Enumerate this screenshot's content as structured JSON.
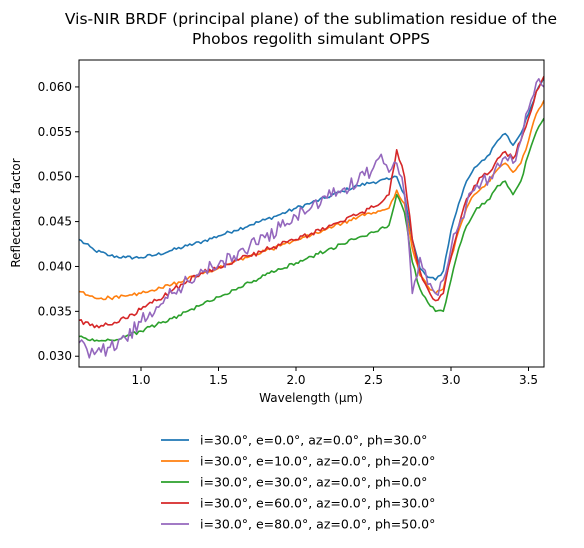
{
  "chart_data": {
    "type": "line",
    "title": "Vis-NIR BRDF (principal plane) of the sublimation residue of the Phobos regolith simulant OPPS",
    "title_lines": [
      "Vis-NIR BRDF (principal plane) of the sublimation residue of the",
      "Phobos regolith simulant OPPS"
    ],
    "xlabel": "Wavelength (μm)",
    "ylabel": "Reflectance factor",
    "xlim": [
      0.6,
      3.6
    ],
    "ylim": [
      0.0288,
      0.063
    ],
    "x_ticks": [
      1.0,
      1.5,
      2.0,
      2.5,
      3.0,
      3.5
    ],
    "x_tick_labels": [
      "1.0",
      "1.5",
      "2.0",
      "2.5",
      "3.0",
      "3.5"
    ],
    "y_ticks": [
      0.03,
      0.035,
      0.04,
      0.045,
      0.05,
      0.055,
      0.06
    ],
    "y_tick_labels": [
      "0.030",
      "0.035",
      "0.040",
      "0.045",
      "0.050",
      "0.055",
      "0.060"
    ],
    "grid": false,
    "legend_position": "below",
    "series": [
      {
        "name": "i=30.0°, e=0.0°, az=0.0°, ph=30.0°",
        "color": "#1f77b4",
        "noise": 0.0002,
        "points": [
          [
            0.6,
            0.043
          ],
          [
            0.7,
            0.0418
          ],
          [
            0.8,
            0.0412
          ],
          [
            0.9,
            0.041
          ],
          [
            1.0,
            0.041
          ],
          [
            1.1,
            0.0413
          ],
          [
            1.2,
            0.0418
          ],
          [
            1.3,
            0.0423
          ],
          [
            1.4,
            0.0428
          ],
          [
            1.5,
            0.0434
          ],
          [
            1.6,
            0.044
          ],
          [
            1.7,
            0.0446
          ],
          [
            1.8,
            0.0452
          ],
          [
            1.9,
            0.0458
          ],
          [
            2.0,
            0.0465
          ],
          [
            2.1,
            0.0471
          ],
          [
            2.2,
            0.0477
          ],
          [
            2.3,
            0.0484
          ],
          [
            2.4,
            0.049
          ],
          [
            2.5,
            0.0494
          ],
          [
            2.6,
            0.0497
          ],
          [
            2.65,
            0.05
          ],
          [
            2.7,
            0.048
          ],
          [
            2.75,
            0.043
          ],
          [
            2.8,
            0.0398
          ],
          [
            2.85,
            0.0388
          ],
          [
            2.9,
            0.0385
          ],
          [
            2.95,
            0.0395
          ],
          [
            3.0,
            0.044
          ],
          [
            3.05,
            0.047
          ],
          [
            3.1,
            0.0495
          ],
          [
            3.15,
            0.051
          ],
          [
            3.2,
            0.0518
          ],
          [
            3.25,
            0.0525
          ],
          [
            3.3,
            0.054
          ],
          [
            3.35,
            0.0548
          ],
          [
            3.4,
            0.0535
          ],
          [
            3.45,
            0.0548
          ],
          [
            3.5,
            0.057
          ],
          [
            3.55,
            0.0595
          ],
          [
            3.6,
            0.061
          ]
        ]
      },
      {
        "name": "i=30.0°, e=10.0°, az=0.0°, ph=20.0°",
        "color": "#ff7f0e",
        "noise": 0.0002,
        "points": [
          [
            0.6,
            0.0372
          ],
          [
            0.7,
            0.0365
          ],
          [
            0.8,
            0.0365
          ],
          [
            0.9,
            0.0367
          ],
          [
            1.0,
            0.037
          ],
          [
            1.1,
            0.0374
          ],
          [
            1.2,
            0.038
          ],
          [
            1.3,
            0.0386
          ],
          [
            1.4,
            0.0392
          ],
          [
            1.5,
            0.0398
          ],
          [
            1.6,
            0.0405
          ],
          [
            1.7,
            0.0411
          ],
          [
            1.8,
            0.0417
          ],
          [
            1.9,
            0.0423
          ],
          [
            2.0,
            0.0429
          ],
          [
            2.1,
            0.0435
          ],
          [
            2.2,
            0.0442
          ],
          [
            2.3,
            0.0448
          ],
          [
            2.4,
            0.0455
          ],
          [
            2.5,
            0.046
          ],
          [
            2.6,
            0.0465
          ],
          [
            2.65,
            0.0485
          ],
          [
            2.7,
            0.047
          ],
          [
            2.75,
            0.042
          ],
          [
            2.8,
            0.039
          ],
          [
            2.85,
            0.0378
          ],
          [
            2.9,
            0.037
          ],
          [
            2.95,
            0.0375
          ],
          [
            3.0,
            0.041
          ],
          [
            3.05,
            0.044
          ],
          [
            3.1,
            0.0465
          ],
          [
            3.15,
            0.048
          ],
          [
            3.2,
            0.0488
          ],
          [
            3.25,
            0.0495
          ],
          [
            3.3,
            0.0508
          ],
          [
            3.35,
            0.0515
          ],
          [
            3.4,
            0.0505
          ],
          [
            3.45,
            0.0515
          ],
          [
            3.5,
            0.054
          ],
          [
            3.55,
            0.057
          ],
          [
            3.6,
            0.0585
          ]
        ]
      },
      {
        "name": "i=30.0°, e=30.0°, az=0.0°, ph=0.0°",
        "color": "#2ca02c",
        "noise": 0.0002,
        "points": [
          [
            0.6,
            0.0322
          ],
          [
            0.7,
            0.0317
          ],
          [
            0.8,
            0.0318
          ],
          [
            0.9,
            0.0322
          ],
          [
            1.0,
            0.0328
          ],
          [
            1.1,
            0.0335
          ],
          [
            1.2,
            0.0342
          ],
          [
            1.3,
            0.035
          ],
          [
            1.4,
            0.0358
          ],
          [
            1.5,
            0.0366
          ],
          [
            1.6,
            0.0374
          ],
          [
            1.7,
            0.0382
          ],
          [
            1.8,
            0.039
          ],
          [
            1.9,
            0.0397
          ],
          [
            2.0,
            0.0404
          ],
          [
            2.1,
            0.0411
          ],
          [
            2.2,
            0.0418
          ],
          [
            2.3,
            0.0425
          ],
          [
            2.4,
            0.0432
          ],
          [
            2.5,
            0.0438
          ],
          [
            2.6,
            0.0446
          ],
          [
            2.65,
            0.048
          ],
          [
            2.7,
            0.046
          ],
          [
            2.75,
            0.0405
          ],
          [
            2.8,
            0.0375
          ],
          [
            2.85,
            0.036
          ],
          [
            2.9,
            0.035
          ],
          [
            2.95,
            0.035
          ],
          [
            3.0,
            0.0385
          ],
          [
            3.05,
            0.042
          ],
          [
            3.1,
            0.0445
          ],
          [
            3.15,
            0.046
          ],
          [
            3.2,
            0.047
          ],
          [
            3.25,
            0.0475
          ],
          [
            3.3,
            0.049
          ],
          [
            3.35,
            0.0495
          ],
          [
            3.4,
            0.048
          ],
          [
            3.45,
            0.0495
          ],
          [
            3.5,
            0.0525
          ],
          [
            3.55,
            0.055
          ],
          [
            3.6,
            0.0565
          ]
        ]
      },
      {
        "name": "i=30.0°, e=60.0°, az=0.0°, ph=30.0°",
        "color": "#d62728",
        "noise": 0.0003,
        "points": [
          [
            0.6,
            0.034
          ],
          [
            0.7,
            0.0332
          ],
          [
            0.8,
            0.0335
          ],
          [
            0.9,
            0.0342
          ],
          [
            1.0,
            0.0352
          ],
          [
            1.1,
            0.0362
          ],
          [
            1.2,
            0.0373
          ],
          [
            1.3,
            0.0384
          ],
          [
            1.4,
            0.0393
          ],
          [
            1.5,
            0.04
          ],
          [
            1.6,
            0.0406
          ],
          [
            1.7,
            0.0412
          ],
          [
            1.8,
            0.0418
          ],
          [
            1.9,
            0.0424
          ],
          [
            2.0,
            0.043
          ],
          [
            2.1,
            0.0437
          ],
          [
            2.2,
            0.0443
          ],
          [
            2.3,
            0.045
          ],
          [
            2.4,
            0.0458
          ],
          [
            2.5,
            0.0466
          ],
          [
            2.6,
            0.048
          ],
          [
            2.65,
            0.053
          ],
          [
            2.7,
            0.05
          ],
          [
            2.75,
            0.043
          ],
          [
            2.8,
            0.0395
          ],
          [
            2.85,
            0.0375
          ],
          [
            2.9,
            0.0362
          ],
          [
            2.95,
            0.037
          ],
          [
            3.0,
            0.041
          ],
          [
            3.05,
            0.0445
          ],
          [
            3.1,
            0.0475
          ],
          [
            3.15,
            0.049
          ],
          [
            3.2,
            0.05
          ],
          [
            3.25,
            0.0505
          ],
          [
            3.3,
            0.052
          ],
          [
            3.35,
            0.0528
          ],
          [
            3.4,
            0.052
          ],
          [
            3.45,
            0.054
          ],
          [
            3.5,
            0.0565
          ],
          [
            3.55,
            0.0595
          ],
          [
            3.6,
            0.0612
          ]
        ]
      },
      {
        "name": "i=30.0°, e=80.0°, az=0.0°, ph=50.0°",
        "color": "#9467bd",
        "noise": 0.0008,
        "points": [
          [
            0.6,
            0.0315
          ],
          [
            0.65,
            0.0308
          ],
          [
            0.7,
            0.0302
          ],
          [
            0.8,
            0.031
          ],
          [
            0.9,
            0.032
          ],
          [
            1.0,
            0.0338
          ],
          [
            1.1,
            0.0355
          ],
          [
            1.2,
            0.037
          ],
          [
            1.3,
            0.0384
          ],
          [
            1.4,
            0.0394
          ],
          [
            1.5,
            0.0402
          ],
          [
            1.6,
            0.0412
          ],
          [
            1.7,
            0.0422
          ],
          [
            1.8,
            0.0432
          ],
          [
            1.9,
            0.0444
          ],
          [
            2.0,
            0.0456
          ],
          [
            2.1,
            0.0466
          ],
          [
            2.2,
            0.0476
          ],
          [
            2.3,
            0.0486
          ],
          [
            2.4,
            0.0495
          ],
          [
            2.5,
            0.051
          ],
          [
            2.55,
            0.0525
          ],
          [
            2.6,
            0.0505
          ],
          [
            2.65,
            0.0515
          ],
          [
            2.7,
            0.048
          ],
          [
            2.75,
            0.037
          ],
          [
            2.8,
            0.041
          ],
          [
            2.85,
            0.038
          ],
          [
            2.9,
            0.037
          ],
          [
            2.95,
            0.0385
          ],
          [
            3.0,
            0.042
          ],
          [
            3.05,
            0.0445
          ],
          [
            3.1,
            0.047
          ],
          [
            3.15,
            0.0485
          ],
          [
            3.2,
            0.0495
          ],
          [
            3.25,
            0.05
          ],
          [
            3.3,
            0.0515
          ],
          [
            3.35,
            0.0522
          ],
          [
            3.4,
            0.0515
          ],
          [
            3.45,
            0.054
          ],
          [
            3.5,
            0.0575
          ],
          [
            3.55,
            0.0605
          ],
          [
            3.6,
            0.06
          ]
        ]
      }
    ]
  }
}
